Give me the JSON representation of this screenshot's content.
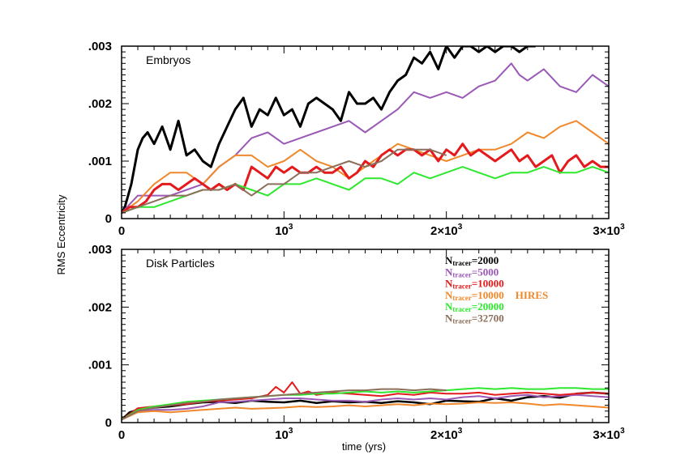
{
  "chart_data": [
    {
      "type": "line",
      "panel_label": "Embryos",
      "xlim": [
        0,
        3000
      ],
      "ylim": [
        0,
        0.003
      ],
      "x_ticks": [
        0,
        1000,
        2000,
        3000
      ],
      "x_tick_labels": [
        "0",
        "10^3",
        "2×10^3",
        "3×10^3"
      ],
      "y_ticks": [
        0,
        0.001,
        0.002,
        0.003
      ],
      "y_tick_labels": [
        "0",
        ".001",
        ".002",
        ".003"
      ],
      "series": [
        {
          "color": "#000000",
          "width": 3,
          "x": [
            0,
            20,
            40,
            60,
            80,
            100,
            130,
            160,
            200,
            250,
            300,
            350,
            400,
            450,
            500,
            550,
            600,
            650,
            700,
            750,
            800,
            850,
            900,
            950,
            1000,
            1050,
            1100,
            1150,
            1200,
            1250,
            1300,
            1350,
            1400,
            1450,
            1500,
            1550,
            1600,
            1650,
            1700,
            1750,
            1800,
            1850,
            1900,
            1950,
            2000,
            2050,
            2100,
            2150,
            2200,
            2250,
            2300,
            2350,
            2400,
            2450,
            2500,
            2550
          ],
          "y": [
            0.0001,
            0.0002,
            0.0004,
            0.0006,
            0.0009,
            0.0012,
            0.0014,
            0.0015,
            0.0013,
            0.0016,
            0.0012,
            0.0017,
            0.0011,
            0.0012,
            0.001,
            0.0009,
            0.0013,
            0.0016,
            0.0019,
            0.0021,
            0.0016,
            0.0019,
            0.0018,
            0.0021,
            0.0018,
            0.0019,
            0.0016,
            0.002,
            0.0021,
            0.002,
            0.0019,
            0.0017,
            0.0022,
            0.002,
            0.002,
            0.0021,
            0.0019,
            0.0022,
            0.0024,
            0.0025,
            0.0028,
            0.0027,
            0.0029,
            0.0026,
            0.003,
            0.0028,
            0.003,
            0.003,
            0.0029,
            0.003,
            0.0029,
            0.003,
            0.003,
            0.0029,
            0.003,
            0.003
          ]
        },
        {
          "color": "#9b59b6",
          "width": 2,
          "x": [
            0,
            100,
            200,
            300,
            400,
            500,
            600,
            700,
            800,
            900,
            1000,
            1100,
            1200,
            1300,
            1400,
            1500,
            1600,
            1700,
            1800,
            1900,
            2000,
            2100,
            2200,
            2300,
            2400,
            2450,
            2500,
            2600,
            2700,
            2800,
            2900,
            3000
          ],
          "y": [
            0.0001,
            0.0004,
            0.0004,
            0.0004,
            0.0005,
            0.0006,
            0.0009,
            0.0011,
            0.0014,
            0.0015,
            0.0013,
            0.0014,
            0.0015,
            0.0016,
            0.0017,
            0.0015,
            0.0017,
            0.0019,
            0.0022,
            0.0021,
            0.0022,
            0.0021,
            0.0023,
            0.0024,
            0.0027,
            0.0025,
            0.0024,
            0.0026,
            0.0023,
            0.0022,
            0.0025,
            0.0023
          ]
        },
        {
          "color": "#f0882c",
          "width": 2,
          "x": [
            0,
            100,
            200,
            300,
            400,
            500,
            600,
            700,
            800,
            900,
            1000,
            1100,
            1200,
            1300,
            1400,
            1500,
            1600,
            1700,
            1800,
            1900,
            2000,
            2100,
            2200,
            2300,
            2400,
            2500,
            2600,
            2700,
            2800,
            2900,
            3000
          ],
          "y": [
            0.0001,
            0.0003,
            0.0006,
            0.0008,
            0.0008,
            0.0006,
            0.0009,
            0.0011,
            0.0011,
            0.0009,
            0.001,
            0.0012,
            0.001,
            0.0009,
            0.0007,
            0.0009,
            0.0011,
            0.0013,
            0.0012,
            0.0011,
            0.001,
            0.0011,
            0.0012,
            0.0012,
            0.0013,
            0.0015,
            0.0014,
            0.0016,
            0.0017,
            0.0015,
            0.0013
          ]
        },
        {
          "color": "#e41a1c",
          "width": 3,
          "x": [
            0,
            50,
            100,
            150,
            200,
            250,
            300,
            350,
            400,
            450,
            500,
            550,
            600,
            650,
            700,
            750,
            800,
            850,
            900,
            950,
            1000,
            1050,
            1100,
            1150,
            1200,
            1250,
            1300,
            1350,
            1400,
            1450,
            1500,
            1550,
            1600,
            1650,
            1700,
            1750,
            1800,
            1850,
            1900,
            1950,
            2000,
            2050,
            2100,
            2150,
            2200,
            2250,
            2300,
            2350,
            2400,
            2450,
            2500,
            2550,
            2600,
            2650,
            2700,
            2750,
            2800,
            2850,
            2900,
            2950,
            3000
          ],
          "y": [
            0.0001,
            0.0002,
            0.0002,
            0.0003,
            0.0005,
            0.0006,
            0.0006,
            0.0005,
            0.0006,
            0.0007,
            0.0006,
            0.0005,
            0.0006,
            0.0005,
            0.0006,
            0.0005,
            0.0009,
            0.0008,
            0.0007,
            0.0009,
            0.0008,
            0.0009,
            0.0008,
            0.0008,
            0.0009,
            0.0008,
            0.0008,
            0.0009,
            0.0007,
            0.0008,
            0.001,
            0.0009,
            0.0011,
            0.0012,
            0.0011,
            0.0012,
            0.0012,
            0.0011,
            0.0012,
            0.001,
            0.0012,
            0.0011,
            0.0013,
            0.0011,
            0.0012,
            0.0011,
            0.001,
            0.0011,
            0.0012,
            0.001,
            0.0011,
            0.0009,
            0.001,
            0.0011,
            0.0008,
            0.001,
            0.0011,
            0.0009,
            0.001,
            0.0009,
            0.0009
          ]
        },
        {
          "color": "#2ee82e",
          "width": 2,
          "x": [
            0,
            100,
            200,
            300,
            400,
            500,
            600,
            700,
            800,
            900,
            1000,
            1100,
            1200,
            1300,
            1400,
            1500,
            1600,
            1700,
            1800,
            1900,
            2000,
            2100,
            2200,
            2300,
            2400,
            2500,
            2600,
            2700,
            2800,
            2900,
            3000
          ],
          "y": [
            0.0001,
            0.0002,
            0.0002,
            0.0003,
            0.0004,
            0.0005,
            0.0005,
            0.0006,
            0.0005,
            0.0004,
            0.0006,
            0.0006,
            0.0007,
            0.0006,
            0.0005,
            0.0007,
            0.0007,
            0.0006,
            0.0008,
            0.0007,
            0.0008,
            0.0009,
            0.0008,
            0.0007,
            0.0008,
            0.0008,
            0.0009,
            0.0008,
            0.0008,
            0.0009,
            0.0008
          ]
        },
        {
          "color": "#8b6f5a",
          "width": 2,
          "x": [
            0,
            100,
            200,
            300,
            400,
            500,
            600,
            700,
            800,
            900,
            1000,
            1100,
            1200,
            1300,
            1400,
            1500,
            1600,
            1700,
            1800,
            1900,
            2000
          ],
          "y": [
            0.0001,
            0.0002,
            0.0003,
            0.0004,
            0.0004,
            0.0005,
            0.0005,
            0.0006,
            0.0004,
            0.0006,
            0.0006,
            0.0008,
            0.0008,
            0.0009,
            0.001,
            0.0009,
            0.001,
            0.0012,
            0.0012,
            0.0012,
            0.0011
          ]
        }
      ]
    },
    {
      "type": "line",
      "panel_label": "Disk Particles",
      "xlabel": "time (yrs)",
      "ylabel": "RMS Eccentricity",
      "xlim": [
        0,
        3000
      ],
      "ylim": [
        0,
        0.003
      ],
      "x_ticks": [
        0,
        1000,
        2000,
        3000
      ],
      "x_tick_labels": [
        "0",
        "10^3",
        "2×10^3",
        "3×10^3"
      ],
      "y_ticks": [
        0,
        0.001,
        0.002,
        0.003
      ],
      "y_tick_labels": [
        "0",
        ".001",
        ".002",
        ".003"
      ],
      "legend_position": "top-right",
      "legend": [
        {
          "main": "N",
          "sub": "tracer",
          "value": "=2000",
          "note": "",
          "color": "#000000"
        },
        {
          "main": "N",
          "sub": "tracer",
          "value": "=5000",
          "note": "",
          "color": "#9b59b6"
        },
        {
          "main": "N",
          "sub": "tracer",
          "value": "=10000",
          "note": "",
          "color": "#e41a1c"
        },
        {
          "main": "N",
          "sub": "tracer",
          "value": "=10000",
          "note": "HIRES",
          "color": "#f0882c"
        },
        {
          "main": "N",
          "sub": "tracer",
          "value": "=20000",
          "note": "",
          "color": "#2ee82e"
        },
        {
          "main": "N",
          "sub": "tracer",
          "value": "=32700",
          "note": "",
          "color": "#8b6f5a"
        }
      ],
      "series": [
        {
          "color": "#000000",
          "width": 2.5,
          "x": [
            0,
            50,
            100,
            200,
            300,
            400,
            500,
            600,
            700,
            800,
            900,
            1000,
            1100,
            1200,
            1300,
            1400,
            1500,
            1600,
            1700,
            1800,
            1900,
            2000,
            2100,
            2200,
            2300,
            2400,
            2500,
            2600,
            2700,
            2800,
            2900,
            3000
          ],
          "y": [
            5e-05,
            0.00018,
            0.00022,
            0.00026,
            0.00028,
            0.00032,
            0.00035,
            0.00036,
            0.00034,
            0.00038,
            0.00036,
            0.00035,
            0.00038,
            0.00034,
            0.00037,
            0.00035,
            0.00036,
            0.00034,
            0.00037,
            0.00035,
            0.00032,
            0.00038,
            0.00037,
            0.00036,
            0.00042,
            0.00038,
            0.00044,
            0.00046,
            0.00043,
            0.0005,
            0.00052,
            0.0005
          ]
        },
        {
          "color": "#9b59b6",
          "width": 2,
          "x": [
            0,
            100,
            200,
            300,
            400,
            500,
            600,
            700,
            800,
            900,
            1000,
            1100,
            1200,
            1300,
            1400,
            1500,
            1600,
            1700,
            1800,
            1900,
            2000,
            2100,
            2200,
            2300,
            2400,
            2500,
            2600,
            2700,
            2800,
            2900,
            3000
          ],
          "y": [
            5e-05,
            0.0002,
            0.00022,
            0.00022,
            0.00024,
            0.00028,
            0.00035,
            0.00036,
            0.00038,
            0.0004,
            0.00042,
            0.00042,
            0.0004,
            0.00038,
            0.00038,
            0.00036,
            0.0004,
            0.00042,
            0.0004,
            0.00042,
            0.0004,
            0.00044,
            0.00046,
            0.00042,
            0.00046,
            0.00048,
            0.00044,
            0.00046,
            0.00048,
            0.00046,
            0.00044
          ]
        },
        {
          "color": "#e41a1c",
          "width": 2,
          "x": [
            0,
            100,
            200,
            300,
            400,
            500,
            600,
            700,
            800,
            900,
            950,
            1000,
            1050,
            1100,
            1150,
            1200,
            1300,
            1400,
            1500,
            1600,
            1700,
            1800,
            1900,
            2000,
            2100,
            2200,
            2300,
            2400,
            2500,
            2600,
            2700,
            2800,
            2900,
            3000
          ],
          "y": [
            5e-05,
            0.00025,
            0.00028,
            0.0003,
            0.00032,
            0.00036,
            0.00038,
            0.0004,
            0.00042,
            0.00048,
            0.00062,
            0.00052,
            0.0007,
            0.0005,
            0.00054,
            0.00048,
            0.00052,
            0.0005,
            0.00048,
            0.00046,
            0.0005,
            0.00048,
            0.00052,
            0.0005,
            0.0005,
            0.00052,
            0.00048,
            0.0005,
            0.00052,
            0.0005,
            0.00048,
            0.0005,
            0.00052,
            0.0005
          ]
        },
        {
          "color": "#f0882c",
          "width": 2,
          "x": [
            0,
            100,
            200,
            300,
            400,
            500,
            600,
            700,
            800,
            900,
            1000,
            1100,
            1200,
            1300,
            1400,
            1500,
            1600,
            1700,
            1800,
            1900,
            2000,
            2100,
            2200,
            2300,
            2400,
            2500,
            2600,
            2700,
            2800,
            2900,
            3000
          ],
          "y": [
            5e-05,
            0.00018,
            0.0002,
            0.00018,
            0.0002,
            0.00022,
            0.00024,
            0.00026,
            0.00024,
            0.00025,
            0.00026,
            0.00028,
            0.00027,
            0.00028,
            0.0003,
            0.00028,
            0.0003,
            0.00032,
            0.0003,
            0.00033,
            0.00032,
            0.00033,
            0.00035,
            0.00034,
            0.00035,
            0.00033,
            0.0003,
            0.00032,
            0.0003,
            0.00028,
            0.00026
          ]
        },
        {
          "color": "#2ee82e",
          "width": 2,
          "x": [
            0,
            100,
            200,
            300,
            400,
            500,
            600,
            700,
            800,
            900,
            1000,
            1100,
            1200,
            1300,
            1400,
            1500,
            1600,
            1700,
            1800,
            1900,
            2000,
            2100,
            2200,
            2300,
            2400,
            2500,
            2600,
            2700,
            2800,
            2900,
            3000
          ],
          "y": [
            5e-05,
            0.00022,
            0.00028,
            0.00032,
            0.00036,
            0.00038,
            0.0004,
            0.00042,
            0.00044,
            0.00046,
            0.00048,
            0.00048,
            0.0005,
            0.0005,
            0.00052,
            0.00054,
            0.00052,
            0.00054,
            0.00052,
            0.00054,
            0.00056,
            0.00058,
            0.0006,
            0.00058,
            0.0006,
            0.00058,
            0.00058,
            0.0006,
            0.0006,
            0.00058,
            0.00058
          ]
        },
        {
          "color": "#8b6f5a",
          "width": 2,
          "x": [
            0,
            100,
            200,
            300,
            400,
            500,
            600,
            700,
            800,
            900,
            1000,
            1100,
            1200,
            1300,
            1400,
            1500,
            1600,
            1700,
            1800,
            1900,
            2000
          ],
          "y": [
            5e-05,
            0.0002,
            0.00026,
            0.0003,
            0.00034,
            0.00036,
            0.0004,
            0.00042,
            0.00044,
            0.00046,
            0.00048,
            0.0005,
            0.00052,
            0.00054,
            0.00056,
            0.00056,
            0.00058,
            0.00058,
            0.00056,
            0.00058,
            0.00056
          ]
        }
      ]
    }
  ]
}
